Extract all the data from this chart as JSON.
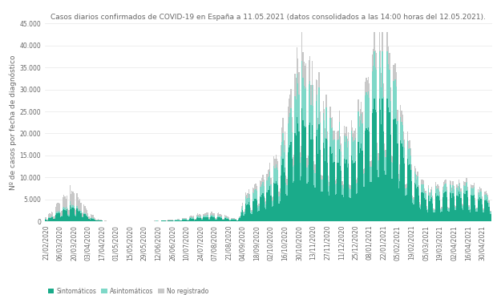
{
  "title": "Casos diarios confirmados de COVID-19 en España a 11.05.2021 (datos consolidados a las 14:00 horas del 12.05.2021).",
  "ylabel": "Nº de casos por fecha de diagnóstico",
  "color_sint": "#1aab8a",
  "color_asint": "#7ed8c8",
  "color_noreg": "#c8c8c8",
  "legend_labels": [
    "Sintomáticos",
    "Asintomáticos",
    "No registrado"
  ],
  "ylim": [
    0,
    45000
  ],
  "yticks": [
    0,
    5000,
    10000,
    15000,
    20000,
    25000,
    30000,
    35000,
    40000,
    45000
  ],
  "background_color": "#ffffff",
  "title_fontsize": 6.5,
  "ylabel_fontsize": 6.5,
  "tick_fontsize": 5.5
}
